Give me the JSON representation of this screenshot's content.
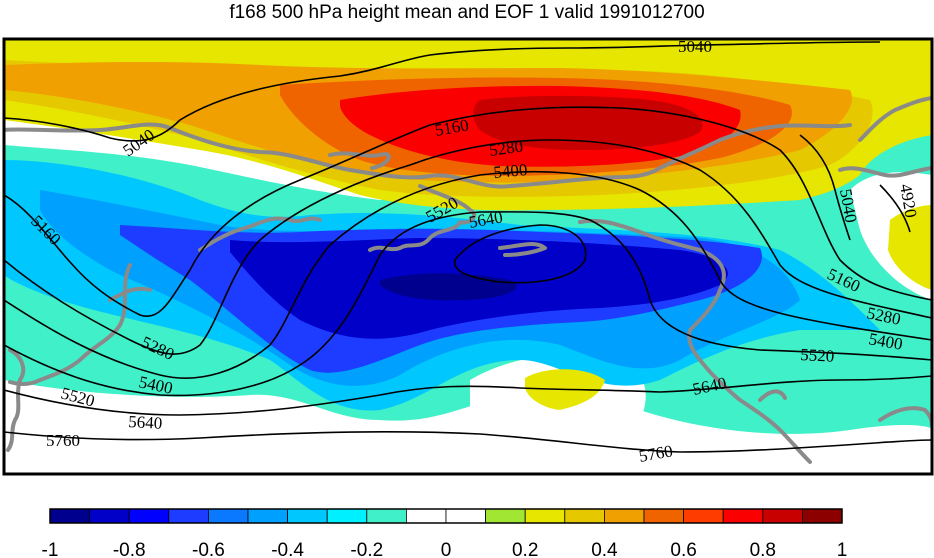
{
  "title": "f168 500 hPa height mean and EOF 1 valid 1991012700",
  "map": {
    "variable_shaded": "EOF 1",
    "variable_contoured": "500 hPa height mean",
    "contour_labels": [
      {
        "text": "5040"
      },
      {
        "text": "5040"
      },
      {
        "text": "5040"
      },
      {
        "text": "4920"
      },
      {
        "text": "5160"
      },
      {
        "text": "5160"
      },
      {
        "text": "5160"
      },
      {
        "text": "5280"
      },
      {
        "text": "5280"
      },
      {
        "text": "5280"
      },
      {
        "text": "5400"
      },
      {
        "text": "5400"
      },
      {
        "text": "5400"
      },
      {
        "text": "5520"
      },
      {
        "text": "5520"
      },
      {
        "text": "5520"
      },
      {
        "text": "5640"
      },
      {
        "text": "5640"
      },
      {
        "text": "5640"
      },
      {
        "text": "5760"
      },
      {
        "text": "5760"
      }
    ],
    "coastline_color": "#8a8a8a",
    "contour_color": "#000000"
  },
  "colorbar": {
    "colors": [
      "#00008f",
      "#0000c8",
      "#0000ff",
      "#1e3cff",
      "#0a78ff",
      "#00a0ff",
      "#00c8ff",
      "#00f0ff",
      "#40f0c8",
      "#ffffff",
      "#ffffff",
      "#a0e632",
      "#e6e600",
      "#e6c800",
      "#f0a000",
      "#f06400",
      "#ff3c00",
      "#fa0000",
      "#c80000",
      "#8c0000"
    ],
    "tick_labels": [
      "-1",
      "-0.8",
      "-0.6",
      "-0.4",
      "-0.2",
      "0",
      "0.2",
      "0.4",
      "0.6",
      "0.8",
      "1"
    ]
  }
}
